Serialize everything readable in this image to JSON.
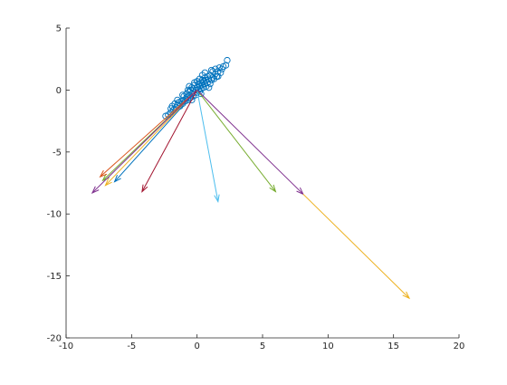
{
  "chart_data": {
    "type": "scatter",
    "title": "",
    "xlabel": "",
    "ylabel": "",
    "xlim": [
      -10,
      20
    ],
    "ylim": [
      -20,
      5
    ],
    "xticks": [
      -10,
      -5,
      0,
      5,
      10,
      15,
      20
    ],
    "yticks": [
      -20,
      -15,
      -10,
      -5,
      0,
      5
    ],
    "grid": false,
    "scatter_color": "#0072BD",
    "scatter_points": [
      [
        -2.2,
        -2.0
      ],
      [
        -2.0,
        -1.8
      ],
      [
        -1.8,
        -1.6
      ],
      [
        -1.9,
        -1.3
      ],
      [
        -1.6,
        -1.4
      ],
      [
        -1.5,
        -1.2
      ],
      [
        -1.4,
        -1.0
      ],
      [
        -1.3,
        -1.3
      ],
      [
        -1.2,
        -0.9
      ],
      [
        -1.1,
        -1.1
      ],
      [
        -1.0,
        -0.8
      ],
      [
        -1.0,
        -0.5
      ],
      [
        -0.9,
        -0.9
      ],
      [
        -0.8,
        -0.6
      ],
      [
        -0.8,
        -0.3
      ],
      [
        -0.7,
        -0.8
      ],
      [
        -0.6,
        -0.4
      ],
      [
        -0.6,
        -0.1
      ],
      [
        -0.5,
        -0.6
      ],
      [
        -0.5,
        0.0
      ],
      [
        -0.4,
        -0.3
      ],
      [
        -0.4,
        0.2
      ],
      [
        -0.3,
        -0.5
      ],
      [
        -0.3,
        0.1
      ],
      [
        -0.2,
        -0.2
      ],
      [
        -0.2,
        0.4
      ],
      [
        -0.1,
        0.0
      ],
      [
        -0.1,
        -0.4
      ],
      [
        0.0,
        0.2
      ],
      [
        0.0,
        -0.2
      ],
      [
        0.1,
        0.5
      ],
      [
        0.1,
        0.0
      ],
      [
        0.2,
        0.3
      ],
      [
        0.2,
        -0.1
      ],
      [
        0.3,
        0.6
      ],
      [
        0.3,
        0.1
      ],
      [
        0.4,
        0.4
      ],
      [
        0.4,
        0.8
      ],
      [
        0.5,
        0.2
      ],
      [
        0.5,
        0.7
      ],
      [
        0.6,
        0.5
      ],
      [
        0.6,
        1.0
      ],
      [
        0.7,
        0.3
      ],
      [
        0.7,
        0.8
      ],
      [
        0.8,
        0.6
      ],
      [
        0.8,
        1.1
      ],
      [
        0.9,
        0.9
      ],
      [
        1.0,
        0.5
      ],
      [
        1.0,
        1.2
      ],
      [
        1.1,
        0.8
      ],
      [
        1.2,
        1.0
      ],
      [
        1.2,
        1.5
      ],
      [
        1.3,
        0.9
      ],
      [
        1.4,
        1.3
      ],
      [
        1.4,
        1.7
      ],
      [
        1.5,
        1.1
      ],
      [
        1.6,
        1.5
      ],
      [
        1.7,
        1.8
      ],
      [
        1.8,
        1.4
      ],
      [
        1.9,
        1.7
      ],
      [
        2.0,
        1.9
      ],
      [
        2.2,
        2.0
      ],
      [
        2.3,
        2.4
      ],
      [
        -0.6,
        0.3
      ],
      [
        -0.2,
        0.6
      ],
      [
        0.2,
        0.9
      ],
      [
        0.6,
        1.4
      ],
      [
        -1.1,
        -0.4
      ],
      [
        -0.7,
        0.0
      ],
      [
        0.3,
        -0.3
      ],
      [
        0.9,
        0.2
      ],
      [
        1.1,
        1.6
      ],
      [
        -1.5,
        -0.8
      ],
      [
        -1.7,
        -1.1
      ],
      [
        -2.0,
        -1.5
      ],
      [
        -2.4,
        -2.1
      ],
      [
        0.0,
        0.7
      ],
      [
        0.4,
        1.2
      ],
      [
        1.6,
        1.1
      ],
      [
        -0.4,
        -0.8
      ]
    ],
    "arrow_origin": [
      0,
      0
    ],
    "arrows": [
      {
        "tip": [
          -7.2,
          -7.3
        ],
        "color": "#77AC30"
      },
      {
        "tip": [
          -7.4,
          -7.0
        ],
        "color": "#D95319"
      },
      {
        "tip": [
          -7.0,
          -7.7
        ],
        "color": "#EDB120"
      },
      {
        "tip": [
          -6.3,
          -7.4
        ],
        "color": "#0072BD"
      },
      {
        "tip": [
          -8.0,
          -8.3
        ],
        "color": "#7E2F8E"
      },
      {
        "tip": [
          -4.2,
          -8.2
        ],
        "color": "#A2142F"
      },
      {
        "tip": [
          1.6,
          -9.0
        ],
        "color": "#4DBEEE"
      },
      {
        "tip": [
          6.0,
          -8.2
        ],
        "color": "#77AC30"
      },
      {
        "tip": [
          8.1,
          -8.4
        ],
        "color": "#7E2F8E"
      },
      {
        "tip": [
          16.2,
          -16.8
        ],
        "color": "#EDB120",
        "from": [
          8.1,
          -8.4
        ]
      }
    ]
  }
}
